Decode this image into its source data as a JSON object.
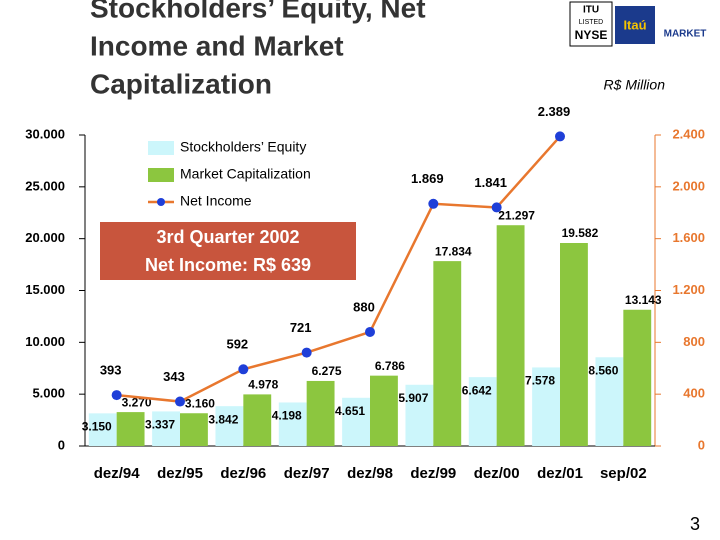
{
  "chart_data": {
    "type": "bar-line",
    "title": [
      "Stockholders’ Equity, Net",
      "Income and Market",
      "Capitalization"
    ],
    "unit_label": "R$ Million",
    "annotation": [
      "3rd Quarter 2002",
      "Net Income: R$ 639"
    ],
    "logos": [
      "ITU",
      "LISTED",
      "NYSE",
      "Itaú",
      "MARKET"
    ],
    "page_number": "3",
    "categories": [
      "dez/94",
      "dez/95",
      "dez/96",
      "dez/97",
      "dez/98",
      "dez/99",
      "dez/00",
      "dez/01",
      "sep/02"
    ],
    "series": [
      {
        "name": "Stockholders’ Equity",
        "type": "bar",
        "color": "#ccf6fb",
        "values": [
          3150,
          3337,
          3842,
          4198,
          4651,
          5907,
          6642,
          7578,
          8560
        ],
        "value_labels": [
          "3.150",
          "3.337",
          "3.842",
          "4.198",
          "4.651",
          "5.907",
          "6.642",
          "7.578",
          "8.560"
        ]
      },
      {
        "name": "Market Capitalization",
        "type": "bar",
        "color": "#8cc63f",
        "values": [
          3270,
          3160,
          4978,
          6275,
          6786,
          17834,
          21297,
          19582,
          13143
        ],
        "value_labels": [
          "3.270",
          "3.160",
          "4.978",
          "6.275",
          "6.786",
          "17.834",
          "21.297",
          "19.582",
          "13.143"
        ]
      },
      {
        "name": "Net Income",
        "type": "line",
        "axis": "y2",
        "color": "#e8772e",
        "marker_color": "#1f3fd8",
        "values": [
          393,
          343,
          592,
          721,
          880,
          1869,
          1841,
          2389,
          null
        ],
        "value_labels": [
          "393",
          "343",
          "592",
          "721",
          "880",
          "1.869",
          "1.841",
          "2.389",
          null
        ]
      }
    ],
    "ylim": [
      0,
      30000
    ],
    "yticks": [
      0,
      {
        "value": 5000,
        "label": "5.000"
      },
      {
        "value": 10000,
        "label": "10.000"
      },
      {
        "value": 15000,
        "label": "15.000"
      },
      {
        "value": 20000,
        "label": "20.000"
      },
      {
        "value": 25000,
        "label": "25.000"
      },
      {
        "value": 30000,
        "label": "30.000"
      }
    ],
    "y2lim": [
      0,
      2400
    ],
    "y2ticks": [
      0,
      400,
      800,
      {
        "value": 1200,
        "label": "1.200"
      },
      {
        "value": 1600,
        "label": "1.600"
      },
      {
        "value": 2000,
        "label": "2.000"
      },
      {
        "value": 2400,
        "label": "2.400"
      }
    ],
    "y2_color": "#e8772e"
  }
}
